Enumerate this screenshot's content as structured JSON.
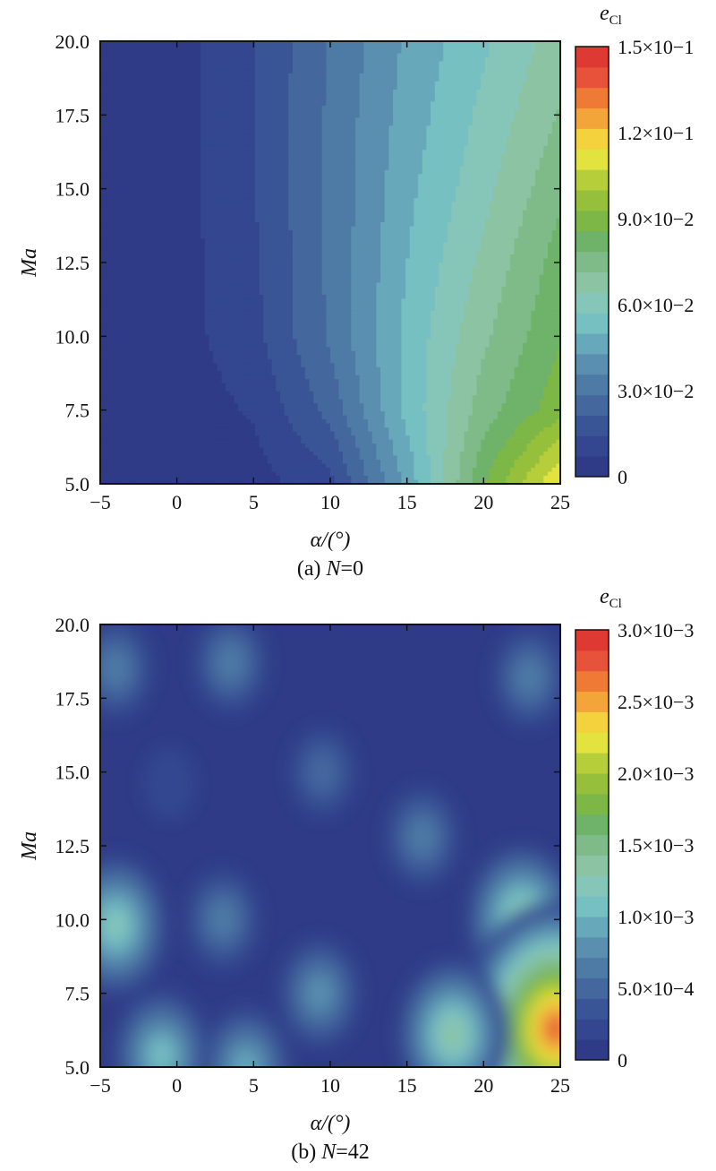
{
  "palette": [
    "#2f3b86",
    "#33468f",
    "#3a5596",
    "#44689e",
    "#4e7aa6",
    "#5a8fb0",
    "#68a8bb",
    "#77c0c2",
    "#86c6b8",
    "#8cc3a2",
    "#7fbb88",
    "#6fb26a",
    "#7db746",
    "#96c03b",
    "#b5ce3a",
    "#e3e340",
    "#f3d23d",
    "#f3a53a",
    "#ee7a35",
    "#e6523a",
    "#de3a33"
  ],
  "charts": [
    {
      "caption_prefix": "(a) ",
      "caption_var": "N",
      "caption_suffix": "=0",
      "xlabel": "α/(°)",
      "ylabel": "Ma",
      "colorbar_title_main": "e",
      "colorbar_title_sub": "Cl",
      "colorbar_ticks": [
        "1.5×10−1",
        "1.2×10−1",
        "9.0×10−2",
        "6.0×10−2",
        "3.0×10−2",
        "0"
      ],
      "x_ticks": [
        "−5",
        "0",
        "5",
        "10",
        "15",
        "20",
        "25"
      ],
      "y_ticks": [
        "20.0",
        "17.5",
        "15.0",
        "12.5",
        "10.0",
        "7.5",
        "5.0"
      ]
    },
    {
      "caption_prefix": "(b) ",
      "caption_var": "N",
      "caption_suffix": "=42",
      "xlabel": "α/(°)",
      "ylabel": "Ma",
      "colorbar_title_main": "e",
      "colorbar_title_sub": "Cl",
      "colorbar_ticks": [
        "3.0×10−3",
        "2.5×10−3",
        "2.0×10−3",
        "1.5×10−3",
        "1.0×10−3",
        "5.0×10−4",
        "0"
      ],
      "x_ticks": [
        "−5",
        "0",
        "5",
        "10",
        "15",
        "20",
        "25"
      ],
      "y_ticks": [
        "20.0",
        "17.5",
        "15.0",
        "12.5",
        "10.0",
        "7.5",
        "5.0"
      ]
    }
  ],
  "chart_data": [
    {
      "type": "heatmap",
      "title": "(a) N=0",
      "xlabel": "α/(°)",
      "ylabel": "Ma",
      "colorbar_label": "eCl",
      "xlim": [
        -5,
        25
      ],
      "ylim": [
        5.0,
        20.0
      ],
      "zlim": [
        0,
        0.15
      ],
      "x": [
        -5,
        0,
        5,
        10,
        15,
        20,
        25
      ],
      "y": [
        5.0,
        7.5,
        10.0,
        12.5,
        15.0,
        17.5,
        20.0
      ],
      "z": [
        [
          0.002,
          0.002,
          0.004,
          0.012,
          0.045,
          0.085,
          0.115
        ],
        [
          0.002,
          0.003,
          0.008,
          0.024,
          0.052,
          0.075,
          0.09
        ],
        [
          0.002,
          0.004,
          0.012,
          0.03,
          0.052,
          0.07,
          0.085
        ],
        [
          0.002,
          0.004,
          0.013,
          0.03,
          0.05,
          0.066,
          0.082
        ],
        [
          0.002,
          0.004,
          0.014,
          0.03,
          0.048,
          0.062,
          0.077
        ],
        [
          0.002,
          0.004,
          0.014,
          0.03,
          0.046,
          0.059,
          0.072
        ],
        [
          0.002,
          0.004,
          0.014,
          0.029,
          0.044,
          0.056,
          0.068
        ]
      ]
    },
    {
      "type": "heatmap",
      "title": "(b) N=42",
      "xlabel": "α/(°)",
      "ylabel": "Ma",
      "colorbar_label": "eCl",
      "xlim": [
        -5,
        25
      ],
      "ylim": [
        5.0,
        20.0
      ],
      "zlim": [
        0,
        0.003
      ],
      "local_maxima": [
        {
          "x": -4,
          "y": 18.5,
          "z": 0.0007
        },
        {
          "x": 3.5,
          "y": 18.7,
          "z": 0.0007
        },
        {
          "x": 23,
          "y": 18.2,
          "z": 0.0006
        },
        {
          "x": -0.5,
          "y": 14.6,
          "z": 0.0002
        },
        {
          "x": 9.5,
          "y": 15.0,
          "z": 0.0005
        },
        {
          "x": 16,
          "y": 12.8,
          "z": 0.0006
        },
        {
          "x": -4,
          "y": 9.8,
          "z": 0.0012
        },
        {
          "x": 3,
          "y": 10.0,
          "z": 0.0006
        },
        {
          "x": 22.5,
          "y": 10.0,
          "z": 0.0014
        },
        {
          "x": 9.3,
          "y": 7.5,
          "z": 0.0008
        },
        {
          "x": 24.7,
          "y": 6.3,
          "z": 0.0028
        },
        {
          "x": 18,
          "y": 6.1,
          "z": 0.0014
        },
        {
          "x": -1,
          "y": 5.4,
          "z": 0.0011
        },
        {
          "x": 4.5,
          "y": 5.0,
          "z": 0.0009
        }
      ]
    }
  ]
}
